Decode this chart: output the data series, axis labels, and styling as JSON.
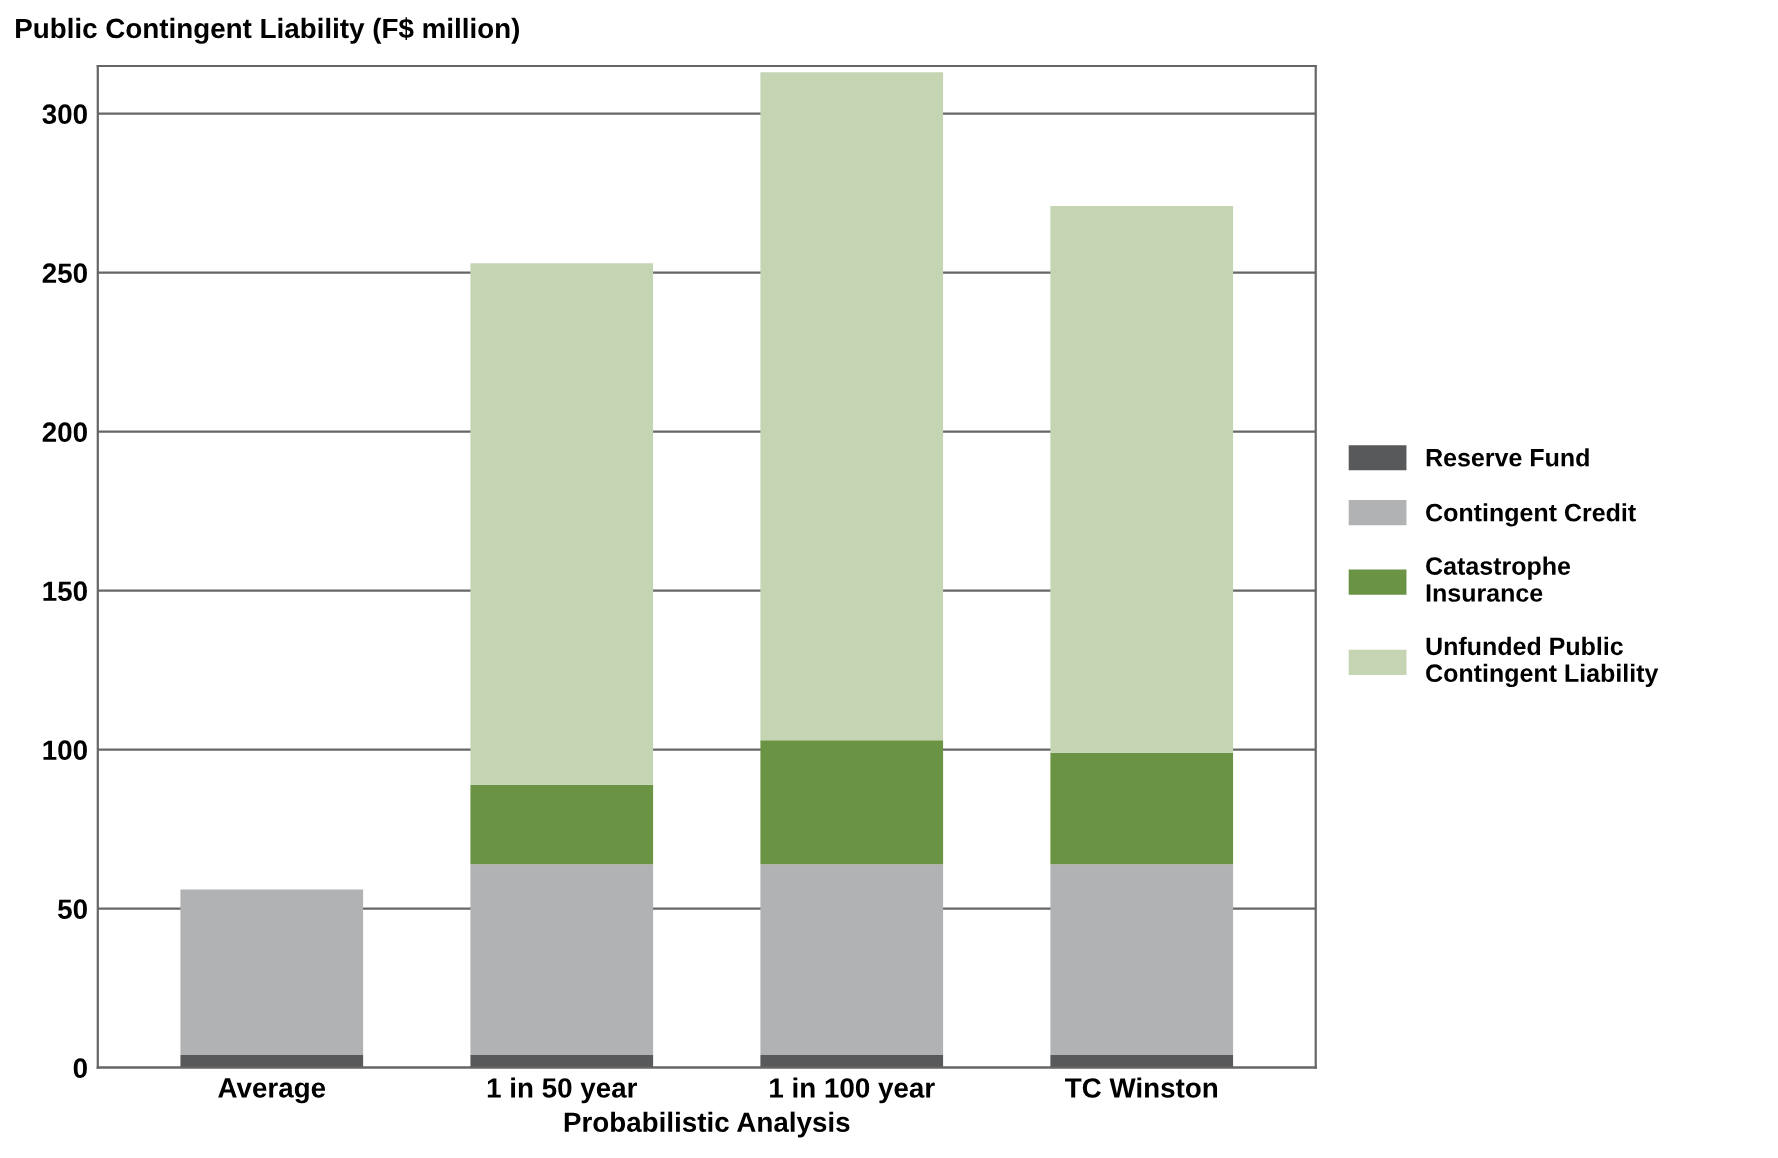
{
  "chart_data": {
    "type": "bar",
    "stacked": true,
    "ylabel": "Public Contingent Liability (F$ million)",
    "xlabel": "Probabilistic Analysis",
    "categories": [
      "Average",
      "1 in 50 year",
      "1 in 100 year",
      "TC Winston"
    ],
    "series": [
      {
        "name": "Reserve Fund",
        "color": "#58595b",
        "values": [
          4,
          4,
          4,
          4
        ]
      },
      {
        "name": "Contingent Credit",
        "color": "#b1b2b4",
        "values": [
          52,
          60,
          60,
          60
        ]
      },
      {
        "name": "Catastrophe Insurance",
        "color": "#6a9444",
        "values": [
          null,
          25,
          39,
          35
        ]
      },
      {
        "name": "Unfunded Public Contingent Liability",
        "color": "#c5d4b3",
        "values": [
          null,
          164,
          210,
          172
        ]
      }
    ],
    "ylim": [
      0,
      315
    ],
    "yticks": [
      0,
      50,
      100,
      150,
      200,
      250,
      300
    ],
    "grid": "y",
    "legend": "right"
  }
}
